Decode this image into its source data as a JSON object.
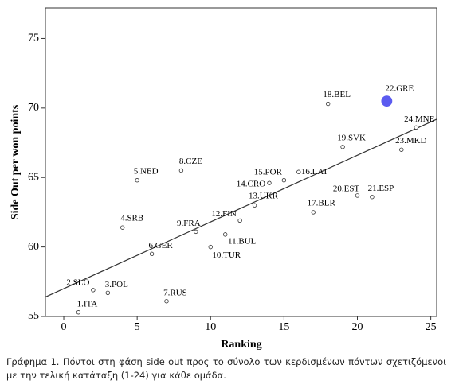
{
  "chart_data": {
    "type": "scatter",
    "xlabel": "Ranking",
    "ylabel": "Side Out per won points",
    "caption": "Γράφημα 1. Πόντοι στη φάση side out προς το σύνολο των κερδισμένων πόντων σχετιζόμενοι με την τελική κατάταξη (1-24) για κάθε ομάδα.",
    "labels": [
      "1.ITA",
      "2.SLO",
      "3.POL",
      "4.SRB",
      "5.NED",
      "6.GER",
      "7.RUS",
      "8.CZE",
      "9.FRA",
      "10.TUR",
      "11.BUL",
      "12.FIN",
      "13.UKR",
      "14.CRO",
      "15.POR",
      "16.LAT",
      "17.BLR",
      "18.BEL",
      "19.SVK",
      "20.EST",
      "21.ESP",
      "22.GRE",
      "23.MKD",
      "24.MNE"
    ],
    "x": [
      1,
      2,
      3,
      4,
      5,
      6,
      7,
      8,
      9,
      10,
      11,
      12,
      13,
      14,
      15,
      16,
      17,
      18,
      19,
      20,
      21,
      22,
      23,
      24
    ],
    "y": [
      55.3,
      56.9,
      56.7,
      61.4,
      64.8,
      59.5,
      56.1,
      65.5,
      61.1,
      60.0,
      60.9,
      61.9,
      63.0,
      64.6,
      64.8,
      65.4,
      62.5,
      70.3,
      67.2,
      63.7,
      63.6,
      70.5,
      67.0,
      68.6
    ],
    "color": "#ffffff",
    "highlight": 22,
    "highlight_color": "#5b5bf0",
    "fit": {
      "intercept": 57.0,
      "slope": 0.48
    },
    "xlim": [
      -1.25,
      25.4
    ],
    "ylim": [
      55,
      77.2
    ],
    "xticks": [
      0,
      5,
      10,
      15,
      20,
      25
    ],
    "yticks": [
      55,
      60,
      65,
      70,
      75
    ]
  }
}
